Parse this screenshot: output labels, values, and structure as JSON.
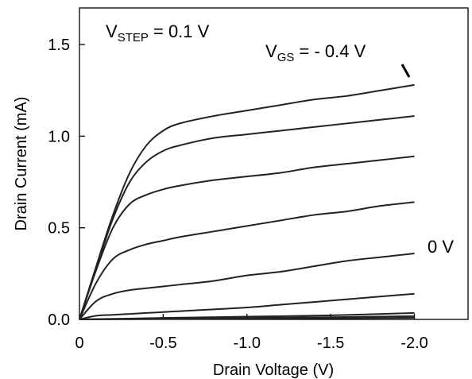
{
  "chart_data": {
    "type": "line",
    "title": "",
    "xlabel": "Drain Voltage (V)",
    "ylabel": "Drain Current (mA)",
    "xlim": [
      0,
      -2.32
    ],
    "ylim": [
      0,
      1.7
    ],
    "xticks": [
      0,
      -0.5,
      -1.0,
      -1.5,
      -2.0
    ],
    "xtick_labels": [
      "0",
      "-0.5",
      "-1.0",
      "-1.5",
      "-2.0"
    ],
    "yticks": [
      0,
      0.5,
      1.0,
      1.5
    ],
    "ytick_labels": [
      "0.0",
      "0.5",
      "1.0",
      "1.5"
    ],
    "grid": false,
    "annotations": {
      "vstep_main": "V",
      "vstep_sub": "STEP",
      "vstep_value": " = 0.1 V",
      "vgs_main": "V",
      "vgs_sub": "GS",
      "vgs_value": " = - 0.4 V",
      "zero_label": "0 V"
    },
    "series": [
      {
        "x": [
          0,
          -0.1,
          -0.2,
          -0.3,
          -0.4,
          -0.5,
          -0.6,
          -0.8,
          -1.0,
          -1.2,
          -1.4,
          -1.6,
          -1.8,
          -2.0
        ],
        "y": [
          0,
          0.29,
          0.57,
          0.8,
          0.95,
          1.03,
          1.07,
          1.11,
          1.14,
          1.17,
          1.2,
          1.22,
          1.25,
          1.28
        ]
      },
      {
        "x": [
          0,
          -0.1,
          -0.2,
          -0.3,
          -0.4,
          -0.5,
          -0.6,
          -0.8,
          -1.0,
          -1.2,
          -1.4,
          -1.6,
          -1.8,
          -2.0
        ],
        "y": [
          0,
          0.28,
          0.55,
          0.75,
          0.86,
          0.92,
          0.95,
          0.99,
          1.01,
          1.03,
          1.05,
          1.07,
          1.09,
          1.11
        ]
      },
      {
        "x": [
          0,
          -0.1,
          -0.2,
          -0.3,
          -0.4,
          -0.5,
          -0.6,
          -0.8,
          -1.0,
          -1.2,
          -1.4,
          -1.6,
          -1.8,
          -2.0
        ],
        "y": [
          0,
          0.27,
          0.5,
          0.63,
          0.68,
          0.71,
          0.73,
          0.76,
          0.78,
          0.8,
          0.83,
          0.85,
          0.87,
          0.89
        ]
      },
      {
        "x": [
          0,
          -0.1,
          -0.2,
          -0.3,
          -0.4,
          -0.5,
          -0.6,
          -0.8,
          -1.0,
          -1.2,
          -1.4,
          -1.6,
          -1.8,
          -2.0
        ],
        "y": [
          0,
          0.2,
          0.33,
          0.38,
          0.41,
          0.43,
          0.45,
          0.48,
          0.51,
          0.54,
          0.57,
          0.59,
          0.62,
          0.64
        ]
      },
      {
        "x": [
          0,
          -0.1,
          -0.2,
          -0.3,
          -0.4,
          -0.5,
          -0.6,
          -0.8,
          -1.0,
          -1.2,
          -1.4,
          -1.6,
          -1.8,
          -2.0
        ],
        "y": [
          0,
          0.1,
          0.14,
          0.16,
          0.17,
          0.18,
          0.19,
          0.21,
          0.24,
          0.26,
          0.29,
          0.32,
          0.34,
          0.36
        ]
      },
      {
        "x": [
          0,
          -0.1,
          -0.2,
          -0.3,
          -0.4,
          -0.5,
          -0.6,
          -0.8,
          -1.0,
          -1.2,
          -1.4,
          -1.6,
          -1.8,
          -2.0
        ],
        "y": [
          0,
          0.02,
          0.025,
          0.03,
          0.035,
          0.04,
          0.045,
          0.055,
          0.065,
          0.08,
          0.095,
          0.11,
          0.125,
          0.14
        ]
      },
      {
        "x": [
          0,
          -0.5,
          -1.0,
          -1.5,
          -2.0
        ],
        "y": [
          0,
          0.008,
          0.015,
          0.022,
          0.035
        ]
      },
      {
        "x": [
          0,
          -0.5,
          -1.0,
          -1.5,
          -2.0
        ],
        "y": [
          0,
          0.004,
          0.008,
          0.012,
          0.018
        ]
      },
      {
        "x": [
          0,
          -0.5,
          -1.0,
          -1.5,
          -2.0
        ],
        "y": [
          0,
          0.002,
          0.004,
          0.006,
          0.009
        ]
      }
    ]
  }
}
